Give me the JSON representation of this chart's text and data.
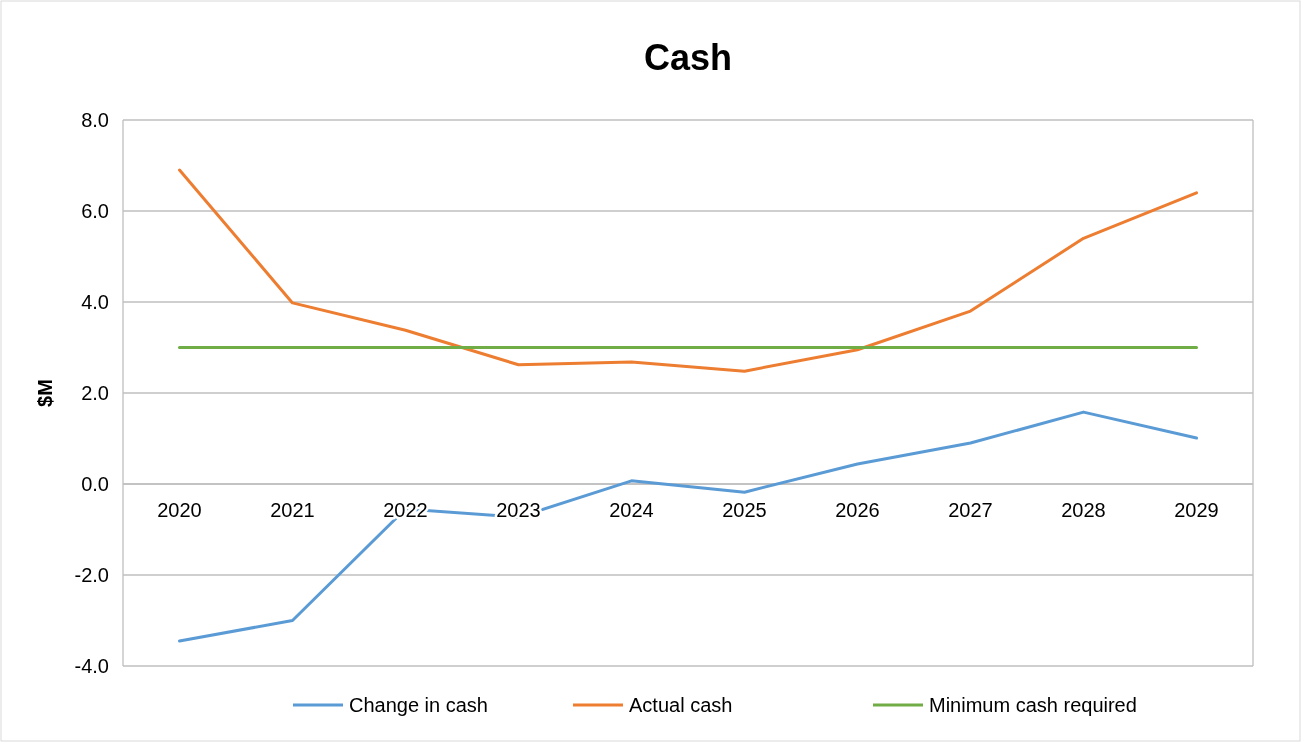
{
  "chart_data": {
    "type": "line",
    "title": "Cash",
    "ylabel": "$M",
    "categories": [
      "2020",
      "2021",
      "2022",
      "2023",
      "2024",
      "2025",
      "2026",
      "2027",
      "2028",
      "2029"
    ],
    "series": [
      {
        "name": "Change in cash",
        "color": "#5b9bd5",
        "values": [
          -3.45,
          -3.0,
          -0.55,
          -0.73,
          0.07,
          -0.18,
          0.44,
          0.9,
          1.58,
          1.01
        ]
      },
      {
        "name": "Actual cash",
        "color": "#ed7d31",
        "values": [
          6.9,
          3.98,
          3.38,
          2.62,
          2.68,
          2.48,
          2.95,
          3.8,
          5.4,
          6.4
        ]
      },
      {
        "name": "Minimum cash required",
        "color": "#70ad47",
        "values": [
          3.0,
          3.0,
          3.0,
          3.0,
          3.0,
          3.0,
          3.0,
          3.0,
          3.0,
          3.0
        ]
      }
    ],
    "ylim": [
      -4,
      8
    ],
    "yticks": [
      {
        "value": -4,
        "label": "-4.0"
      },
      {
        "value": -2,
        "label": "-2.0"
      },
      {
        "value": 0,
        "label": "0.0"
      },
      {
        "value": 2,
        "label": "2.0"
      },
      {
        "value": 4,
        "label": "4.0"
      },
      {
        "value": 6,
        "label": "6.0"
      },
      {
        "value": 8,
        "label": "8.0"
      }
    ],
    "grid": "y",
    "legend": "bottom",
    "marker": "none",
    "line_style": "solid"
  }
}
